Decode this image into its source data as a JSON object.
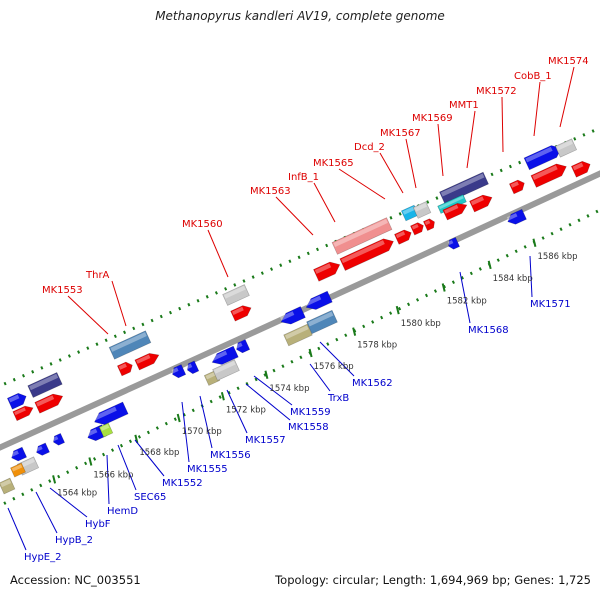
{
  "title": "Methanopyrus kandleri AV19, complete genome",
  "footer": {
    "accession": "Accession: NC_003551",
    "summary": "Topology: circular; Length: 1,694,969 bp; Genes: 1,725"
  },
  "colors": {
    "backbone": "#9a9a9a",
    "top_strand_label": "#dd0000",
    "bottom_strand_label": "#0000cc",
    "tick_green": "#1a7a1a"
  },
  "scale_labels": [
    {
      "text": "1564 kbp",
      "at": 0.096
    },
    {
      "text": "1566 kbp",
      "at": 0.156
    },
    {
      "text": "1568 kbp",
      "at": 0.232
    },
    {
      "text": "1570 kbp",
      "at": 0.302
    },
    {
      "text": "1572 kbp",
      "at": 0.375
    },
    {
      "text": "1574 kbp",
      "at": 0.447
    },
    {
      "text": "1576 kbp",
      "at": 0.52
    },
    {
      "text": "1578 kbp",
      "at": 0.592
    },
    {
      "text": "1580 kbp",
      "at": 0.664
    },
    {
      "text": "1582 kbp",
      "at": 0.74
    },
    {
      "text": "1584 kbp",
      "at": 0.816
    },
    {
      "text": "1586 kbp",
      "at": 0.89
    }
  ],
  "top_labels": [
    {
      "text": "MK1553"
    },
    {
      "text": "ThrA"
    },
    {
      "text": "MK1560"
    },
    {
      "text": "MK1563"
    },
    {
      "text": "InfB_1"
    },
    {
      "text": "MK1565"
    },
    {
      "text": "Dcd_2"
    },
    {
      "text": "MK1567"
    },
    {
      "text": "MK1569"
    },
    {
      "text": "MMT1"
    },
    {
      "text": "MK1572"
    },
    {
      "text": "CobB_1"
    },
    {
      "text": "MK1574"
    }
  ],
  "bottom_labels": [
    {
      "text": "HypE_2"
    },
    {
      "text": "HypB_2"
    },
    {
      "text": "HybF"
    },
    {
      "text": "HemD"
    },
    {
      "text": "SEC65"
    },
    {
      "text": "MK1552"
    },
    {
      "text": "MK1555"
    },
    {
      "text": "MK1556"
    },
    {
      "text": "MK1557"
    },
    {
      "text": "MK1558"
    },
    {
      "text": "MK1559"
    },
    {
      "text": "TrxB"
    },
    {
      "text": "MK1562"
    },
    {
      "text": "MK1568"
    },
    {
      "text": "MK1571"
    }
  ]
}
